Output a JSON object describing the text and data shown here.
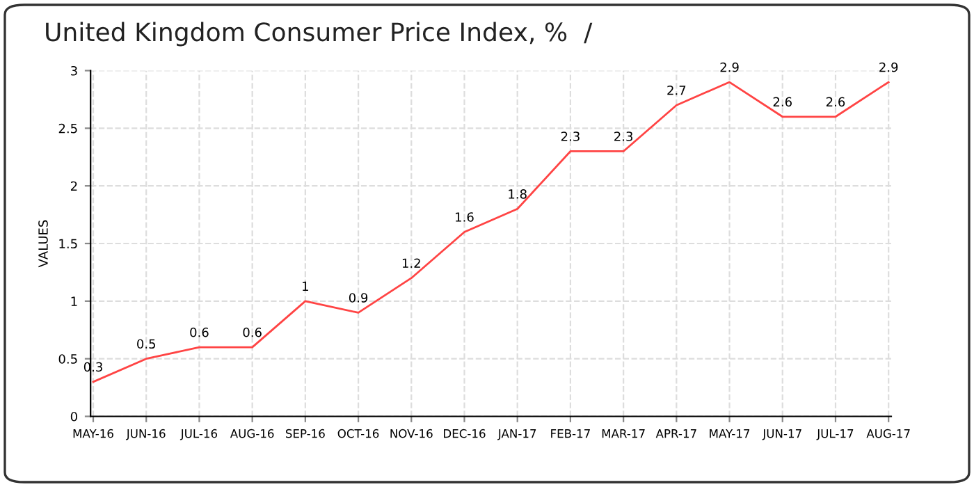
{
  "chart_data": {
    "type": "line",
    "title": "United Kingdom Consumer Price Index, %  /",
    "ylabel": "VALUES",
    "categories": [
      "MAY-16",
      "JUN-16",
      "JUL-16",
      "AUG-16",
      "SEP-16",
      "OCT-16",
      "NOV-16",
      "DEC-16",
      "JAN-17",
      "FEB-17",
      "MAR-17",
      "APR-17",
      "MAY-17",
      "JUN-17",
      "JUL-17",
      "AUG-17"
    ],
    "series": [
      {
        "color": "#ff4444",
        "values": [
          0.3,
          0.5,
          0.6,
          0.6,
          1,
          0.9,
          1.2,
          1.6,
          1.8,
          2.3,
          2.3,
          2.7,
          2.9,
          2.6,
          2.6,
          2.9
        ]
      }
    ],
    "ylim": [
      0,
      3
    ],
    "yticks": [
      0,
      0.5,
      1,
      1.5,
      2,
      2.5,
      3
    ],
    "grid": true,
    "data_labels": true,
    "line_style": "solid",
    "marker": "none"
  }
}
